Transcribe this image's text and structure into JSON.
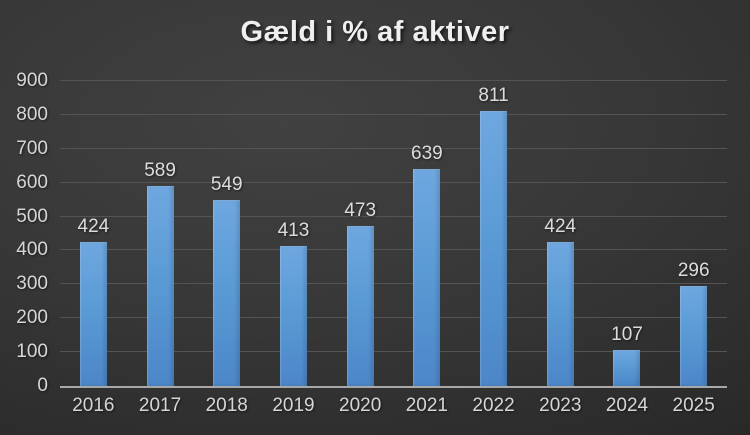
{
  "chart_data": {
    "type": "bar",
    "title": "Gæld i % af aktiver",
    "categories": [
      "2016",
      "2017",
      "2018",
      "2019",
      "2020",
      "2021",
      "2022",
      "2023",
      "2024",
      "2025"
    ],
    "values": [
      424,
      589,
      549,
      413,
      473,
      639,
      811,
      424,
      107,
      296
    ],
    "xlabel": "",
    "ylabel": "",
    "ylim": [
      0,
      900
    ],
    "yticks": [
      0,
      100,
      200,
      300,
      400,
      500,
      600,
      700,
      800,
      900
    ],
    "grid": true,
    "legend": "none",
    "colors": {
      "bar_fill": "#5b9bd5",
      "bar_fill_top": "#6fa7e0",
      "bar_fill_bottom": "#4c86c8",
      "background_center": "#414141",
      "background_edge": "#1f1f1f",
      "gridline": "#545456",
      "axis_line": "#a8a8a8",
      "tick_text": "#d6d6d6",
      "title_text": "#efefef"
    }
  }
}
